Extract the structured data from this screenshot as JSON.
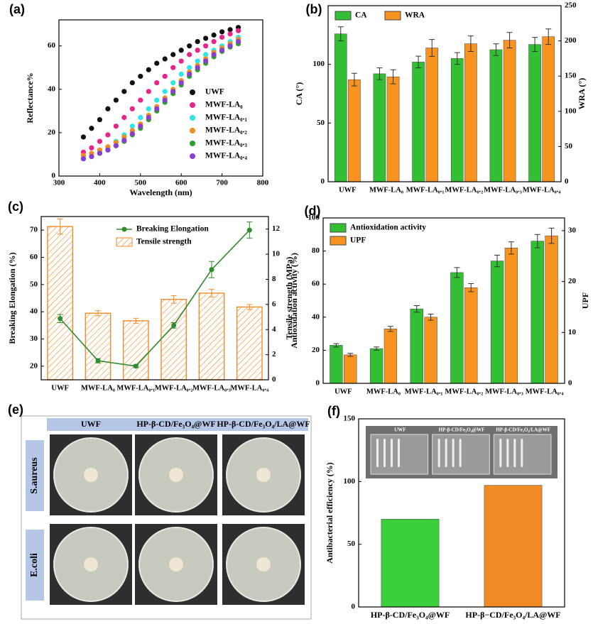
{
  "chart_data": [
    {
      "type": "scatter",
      "panel": "(a)",
      "xlabel": "Wavelength (nm)",
      "ylabel": "Reflectance%",
      "x": [
        360,
        380,
        400,
        420,
        440,
        460,
        480,
        500,
        520,
        540,
        560,
        580,
        600,
        620,
        640,
        660,
        680,
        700,
        720,
        740
      ],
      "xlim": [
        300,
        800
      ],
      "xticks": [
        300,
        400,
        500,
        600,
        700,
        800
      ],
      "ylim": [
        0,
        72
      ],
      "yticks": [
        0,
        20,
        40,
        60
      ],
      "legend": "lower right",
      "series": [
        {
          "name": "UWF",
          "color": "#111111",
          "values": [
            18,
            22,
            26,
            31,
            35,
            39,
            43,
            46,
            49,
            52,
            54,
            56,
            58,
            60,
            62,
            63.5,
            65,
            66.5,
            67.5,
            68.5
          ]
        },
        {
          "name": "MWF-LA₀",
          "color": "#e6248a",
          "values": [
            11,
            13,
            16,
            19,
            23,
            27,
            31,
            35,
            39,
            43,
            46,
            50,
            53,
            56,
            58,
            60,
            62,
            64,
            65.5,
            67
          ]
        },
        {
          "name": "MWF-LA₀.₁",
          "color": "#2ee6e6",
          "values": [
            8,
            9,
            11,
            13,
            16,
            19,
            23,
            27,
            31,
            35,
            39,
            43,
            47,
            50,
            53,
            56,
            58,
            60,
            62,
            64
          ]
        },
        {
          "name": "MWF-LA₀.₂",
          "color": "#f28c1f",
          "values": [
            9.5,
            10.5,
            12,
            13.5,
            15.5,
            18,
            21,
            24,
            28,
            32,
            36,
            40,
            44,
            48,
            51,
            54,
            57,
            59,
            61,
            63
          ]
        },
        {
          "name": "MWF-LA₀.₃",
          "color": "#2ca02c",
          "values": [
            8,
            9,
            10.5,
            12,
            14,
            16,
            19,
            22,
            26,
            30,
            34,
            38,
            42,
            46,
            49,
            52,
            55,
            57.5,
            59.5,
            61
          ]
        },
        {
          "name": "MWF-LA₀.₄",
          "color": "#8a3fd1",
          "values": [
            8,
            9,
            10.5,
            12,
            14,
            16.5,
            19.5,
            23,
            27,
            31,
            35,
            39,
            43,
            47,
            50,
            53,
            56,
            58,
            60,
            62
          ]
        }
      ]
    },
    {
      "type": "bar",
      "panel": "(b)",
      "ylabel": "CA (°)",
      "y2label": "WRA (°)",
      "categories": [
        "UWF",
        "MWF-LA₀",
        "MWF-LA₀.₁",
        "MWF-LA₀.₂",
        "MWF-LA₀.₃",
        "MWF-LA₀.₄"
      ],
      "ylim": [
        0,
        150
      ],
      "yticks": [
        0,
        50,
        100
      ],
      "y2lim": [
        0,
        250
      ],
      "y2ticks": [
        0,
        50,
        100,
        150,
        200,
        250
      ],
      "legend": "upper left",
      "legend_orientation": "horizontal",
      "series": [
        {
          "name": "CA",
          "color": "#33bf33",
          "values": [
            126,
            92,
            102,
            105,
            112.5,
            117
          ],
          "errors": [
            6,
            5,
            5,
            5,
            5,
            6
          ]
        },
        {
          "name": "WRA",
          "color": "#f7931e",
          "axis": "y2",
          "values": [
            145,
            149,
            190,
            196,
            201,
            206
          ],
          "errors": [
            9,
            10,
            12,
            11,
            11,
            11
          ]
        }
      ]
    },
    {
      "type": "bar",
      "panel": "(c)",
      "ylabel": "Breaking Elongation (%)",
      "y2label": "Tensile strength (MPa)",
      "categories": [
        "UWF",
        "MWF-LA₀",
        "MWF-LA₀.₁",
        "MWF-LA₀.₂",
        "MWF-LA₀.₃",
        "MWF-LA₀.₄"
      ],
      "ylim": [
        15,
        75
      ],
      "yticks": [
        20,
        30,
        40,
        50,
        60,
        70
      ],
      "y2lim": [
        0,
        13
      ],
      "y2ticks": [
        0,
        2,
        4,
        6,
        8,
        10,
        12
      ],
      "legend": "upper center",
      "series": [
        {
          "name": "Breaking Elongation",
          "type": "line",
          "color": "#2e8b2e",
          "values": [
            37.5,
            22,
            20,
            35,
            55.5,
            70
          ],
          "errors": [
            1.5,
            0.8,
            0.5,
            1,
            3,
            3
          ]
        },
        {
          "name": "Tensile strength",
          "axis": "y2",
          "hatch": true,
          "color": "#f28c28",
          "values": [
            12.2,
            5.3,
            4.7,
            6.4,
            6.9,
            5.8
          ],
          "errors": [
            0.6,
            0.2,
            0.2,
            0.3,
            0.3,
            0.2
          ]
        }
      ]
    },
    {
      "type": "bar",
      "panel": "(d)",
      "ylabel": "Antioxidation activity (%)",
      "y2label": "UPF",
      "categories": [
        "UWF",
        "MWF-LA₀",
        "MWF-LA₀.₁",
        "MWF-LA₀.₂",
        "MWF-LA₀.₃",
        "MWF-LA₀.₄"
      ],
      "ylim": [
        0,
        100
      ],
      "yticks": [
        0,
        20,
        40,
        60,
        80,
        100
      ],
      "y2lim": [
        0,
        32.5
      ],
      "y2ticks": [
        0,
        10,
        20,
        30
      ],
      "legend": "upper left",
      "series": [
        {
          "name": "Antioxidation activity",
          "color": "#33bf33",
          "values": [
            23,
            21,
            45,
            67,
            74,
            86
          ],
          "errors": [
            1,
            1,
            2,
            3,
            3.5,
            4
          ]
        },
        {
          "name": "UPF",
          "color": "#f7931e",
          "axis": "y2",
          "values": [
            5.6,
            10.7,
            13,
            18.8,
            26.6,
            29
          ],
          "errors": [
            0.3,
            0.5,
            0.6,
            0.8,
            1.2,
            1.5
          ]
        }
      ]
    },
    {
      "type": "bar",
      "panel": "(f)",
      "ylabel": "Antibacterial efficiency (%)",
      "categories": [
        "HP-β-CD/Fe₃O₄@WF",
        "HP-β−CD/Fe₃O₄/LA@WF"
      ],
      "values": [
        70,
        97
      ],
      "colors": [
        "#3ccf3c",
        "#f08a24"
      ],
      "ylim": [
        0,
        150
      ],
      "yticks": [
        0,
        50,
        100,
        150
      ],
      "inset_labels": [
        "UWF",
        "HP-β-CD/Fe₃O₄@WF",
        "HP-β-CD/Fe₃O₄/LA@WF"
      ]
    }
  ],
  "plates": {
    "panel": "(e)",
    "columns": [
      "UWF",
      "HP-β-CD/Fe₃O₄@WF",
      "HP-β-CD/Fe₃O₄/LA@WF"
    ],
    "rows": [
      "S.aureus",
      "E.coli"
    ]
  }
}
